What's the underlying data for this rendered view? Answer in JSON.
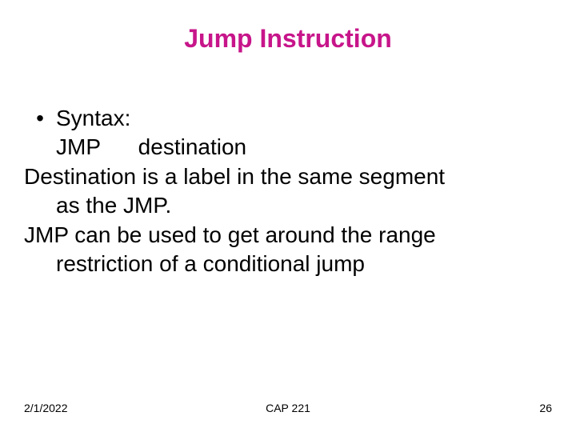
{
  "title": {
    "text": "Jump Instruction",
    "color": "#c7158a",
    "fontsize": 32
  },
  "body": {
    "color": "#000000",
    "fontsize": 28,
    "bullet_glyph": "•",
    "lines": [
      {
        "text": "Syntax:",
        "indent": 1,
        "bullet": true
      },
      {
        "text": "JMP      destination",
        "indent": 1,
        "bullet": false
      },
      {
        "text": "Destination is a label in the same segment",
        "indent": 0,
        "bullet": false
      },
      {
        "text": "as the JMP.",
        "indent": 1,
        "bullet": false
      },
      {
        "text": "JMP can be used to get around the range",
        "indent": 0,
        "bullet": false
      },
      {
        "text": "restriction of a conditional jump",
        "indent": 1,
        "bullet": false
      }
    ]
  },
  "footer": {
    "color": "#000000",
    "fontsize": 14,
    "date": "2/1/2022",
    "course": "CAP 221",
    "page": "26"
  }
}
